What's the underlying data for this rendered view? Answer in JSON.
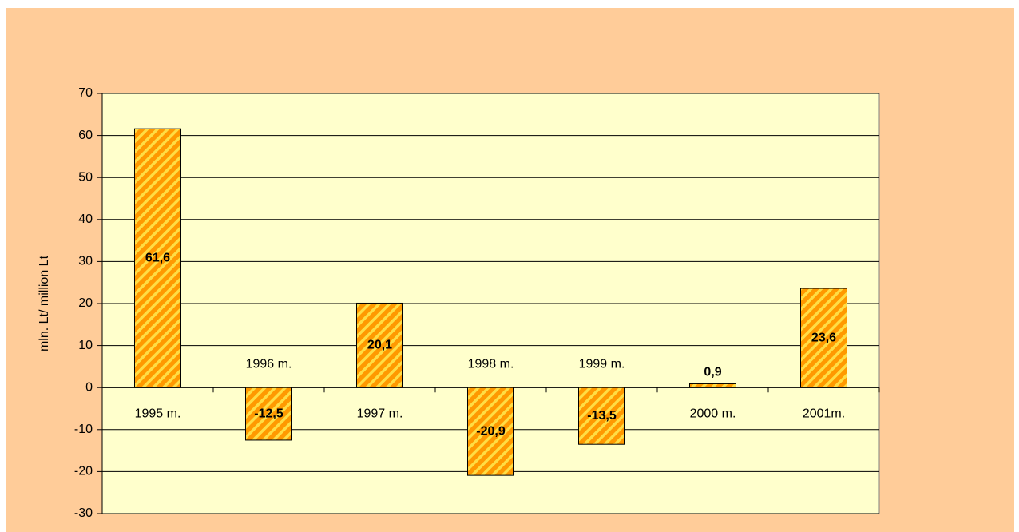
{
  "chart_data": {
    "type": "bar",
    "y_label": "mln. Lt/ million Lt",
    "categories": [
      "1995 m.",
      "1996 m.",
      "1997 m.",
      "1998 m.",
      "1999 m.",
      "2000 m.",
      "2001m."
    ],
    "values": [
      61.6,
      -12.5,
      20.1,
      -20.9,
      -13.5,
      0.9,
      23.6
    ],
    "value_labels": [
      "61,6",
      "-12,5",
      "20,1",
      "-20,9",
      "-13,5",
      "0,9",
      "23,6"
    ],
    "color": "#ff9900",
    "ylim": [
      -30,
      70
    ],
    "yticks": [
      -30,
      -20,
      -10,
      0,
      10,
      20,
      30,
      40,
      50,
      60,
      70
    ],
    "grid": true
  }
}
